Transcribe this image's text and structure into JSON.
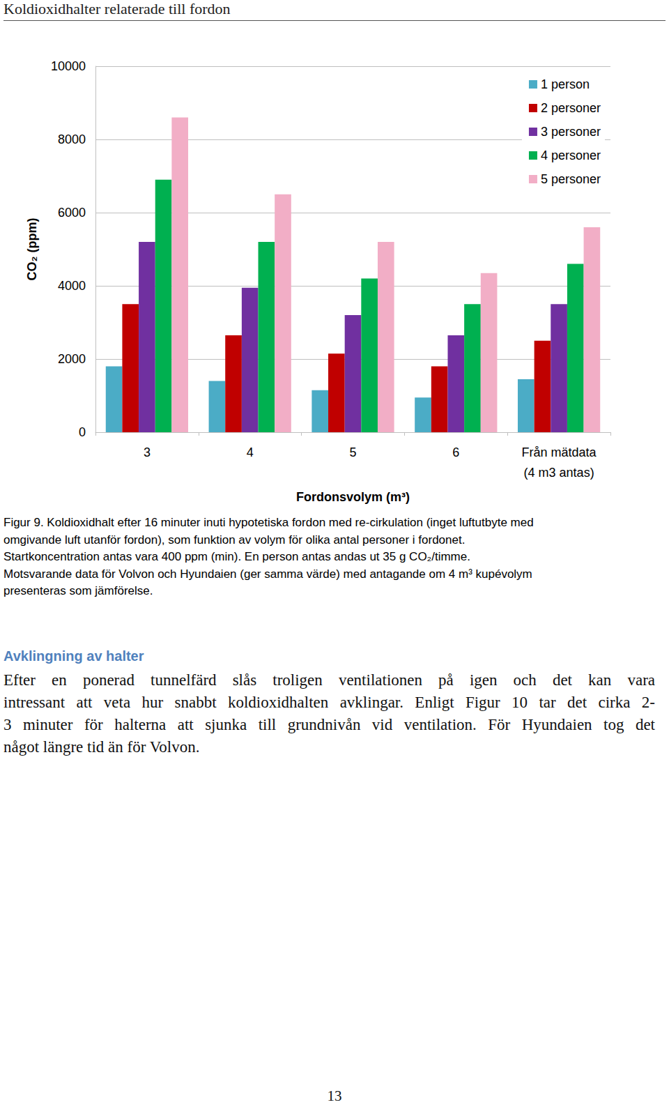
{
  "header": {
    "title": "Koldioxidhalter relaterade till fordon"
  },
  "chart_data": {
    "type": "bar",
    "x_label": "Fordonsvolym (m³)",
    "y_label": "CO₂ (ppm)",
    "categories": [
      "3",
      "4",
      "5",
      "6",
      "Från mätdata\n(4 m3 antas)"
    ],
    "series": [
      {
        "name": "1 person",
        "color": "#4bacc6",
        "values": [
          1800,
          1400,
          1150,
          950,
          1450
        ]
      },
      {
        "name": "2 personer",
        "color": "#c00000",
        "values": [
          3500,
          2650,
          2150,
          1800,
          2500
        ]
      },
      {
        "name": "3 personer",
        "color": "#7030a0",
        "values": [
          5200,
          3950,
          3200,
          2650,
          3500
        ]
      },
      {
        "name": "4 personer",
        "color": "#00b050",
        "values": [
          6900,
          5200,
          4200,
          3500,
          4600
        ]
      },
      {
        "name": "5 personer",
        "color": "#f2aec6",
        "values": [
          8600,
          6500,
          5200,
          4350,
          5600
        ]
      }
    ],
    "ylim": [
      0,
      10000
    ],
    "yticks": [
      0,
      2000,
      4000,
      6000,
      8000,
      10000
    ],
    "grid": true,
    "legend": "upper right",
    "data_labels": false
  },
  "caption": {
    "lines": [
      "Figur 9. Koldioxidhalt efter 16 minuter inuti hypotetiska fordon med re-cirkulation (inget luftutbyte med",
      "omgivande luft utanför fordon), som funktion av volym för olika antal personer i fordonet.",
      "Startkoncentration antas vara 400 ppm (min). En person antas andas ut 35 g CO₂/timme.",
      "Motsvarande data för Volvon och Hyundaien (ger samma värde) med antagande om 4 m³ kupévolym",
      "presenteras som jämförelse."
    ]
  },
  "section": {
    "heading": "Avklingning av halter",
    "lines": [
      "Efter en ponerad tunnelfärd slås troligen ventilationen på igen och det kan vara",
      "intressant att veta hur snabbt koldioxidhalten avklingar. Enligt Figur 10 tar det cirka 2-",
      "3 minuter för halterna att sjunka till grundnivån vid ventilation. För Hyundaien tog det",
      "något längre tid än för Volvon."
    ]
  },
  "page_number": "13"
}
